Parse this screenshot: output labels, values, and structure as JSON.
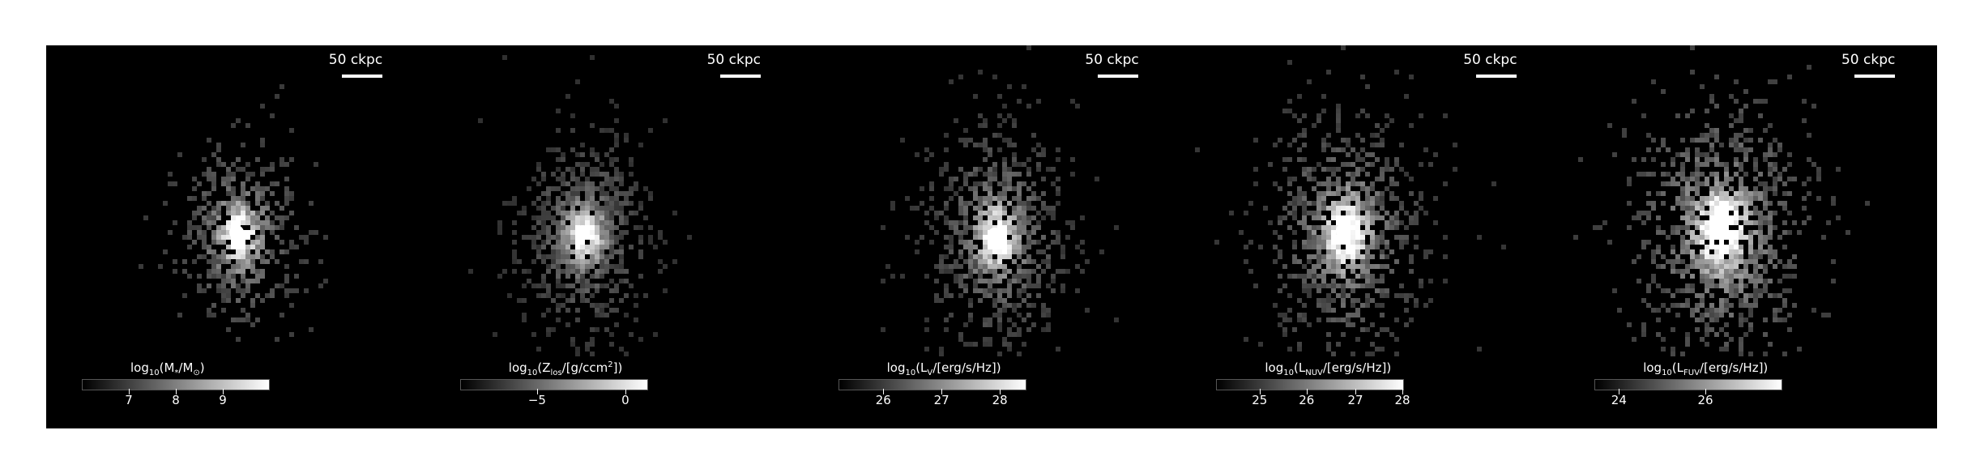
{
  "figure": {
    "background": "#000000",
    "panels": [
      {
        "id": "stellar-mass",
        "scalebar_label": "50 ckpc",
        "colorbar": {
          "label_prefix": "log",
          "label_base": "10",
          "label_body": "(M",
          "label_sub1": "*",
          "label_mid": "/M",
          "label_sub2": "⊙",
          "label_end": ")",
          "ticks": [
            "7",
            "8",
            "9"
          ]
        },
        "brightness": 0.9
      },
      {
        "id": "metallicity",
        "scalebar_label": "50 ckpc",
        "colorbar": {
          "label_prefix": "log",
          "label_base": "10",
          "label_body": "(Z",
          "label_sub1": "los",
          "label_mid": "/[g/ccm",
          "label_sup": "2",
          "label_end": "])",
          "ticks": [
            "−5",
            "0"
          ]
        },
        "brightness": 0.75
      },
      {
        "id": "v-band",
        "scalebar_label": "50 ckpc",
        "colorbar": {
          "label_prefix": "log",
          "label_base": "10",
          "label_body": "(L",
          "label_sub1": "V",
          "label_mid": "/[erg/s/Hz])",
          "label_end": "",
          "ticks": [
            "26",
            "27",
            "28"
          ]
        },
        "brightness": 0.8
      },
      {
        "id": "nuv",
        "scalebar_label": "50 ckpc",
        "colorbar": {
          "label_prefix": "log",
          "label_base": "10",
          "label_body": "(L",
          "label_sub1": "NUV",
          "label_mid": "/[erg/s/Hz])",
          "label_end": "",
          "ticks": [
            "25",
            "26",
            "27",
            "28"
          ]
        },
        "brightness": 0.85
      },
      {
        "id": "fuv",
        "scalebar_label": "50 ckpc",
        "colorbar": {
          "label_prefix": "log",
          "label_base": "10",
          "label_body": "(L",
          "label_sub1": "FUV",
          "label_mid": "/[erg/s/Hz])",
          "label_end": "",
          "ticks": [
            "24",
            "26"
          ]
        },
        "brightness": 0.95
      }
    ]
  }
}
